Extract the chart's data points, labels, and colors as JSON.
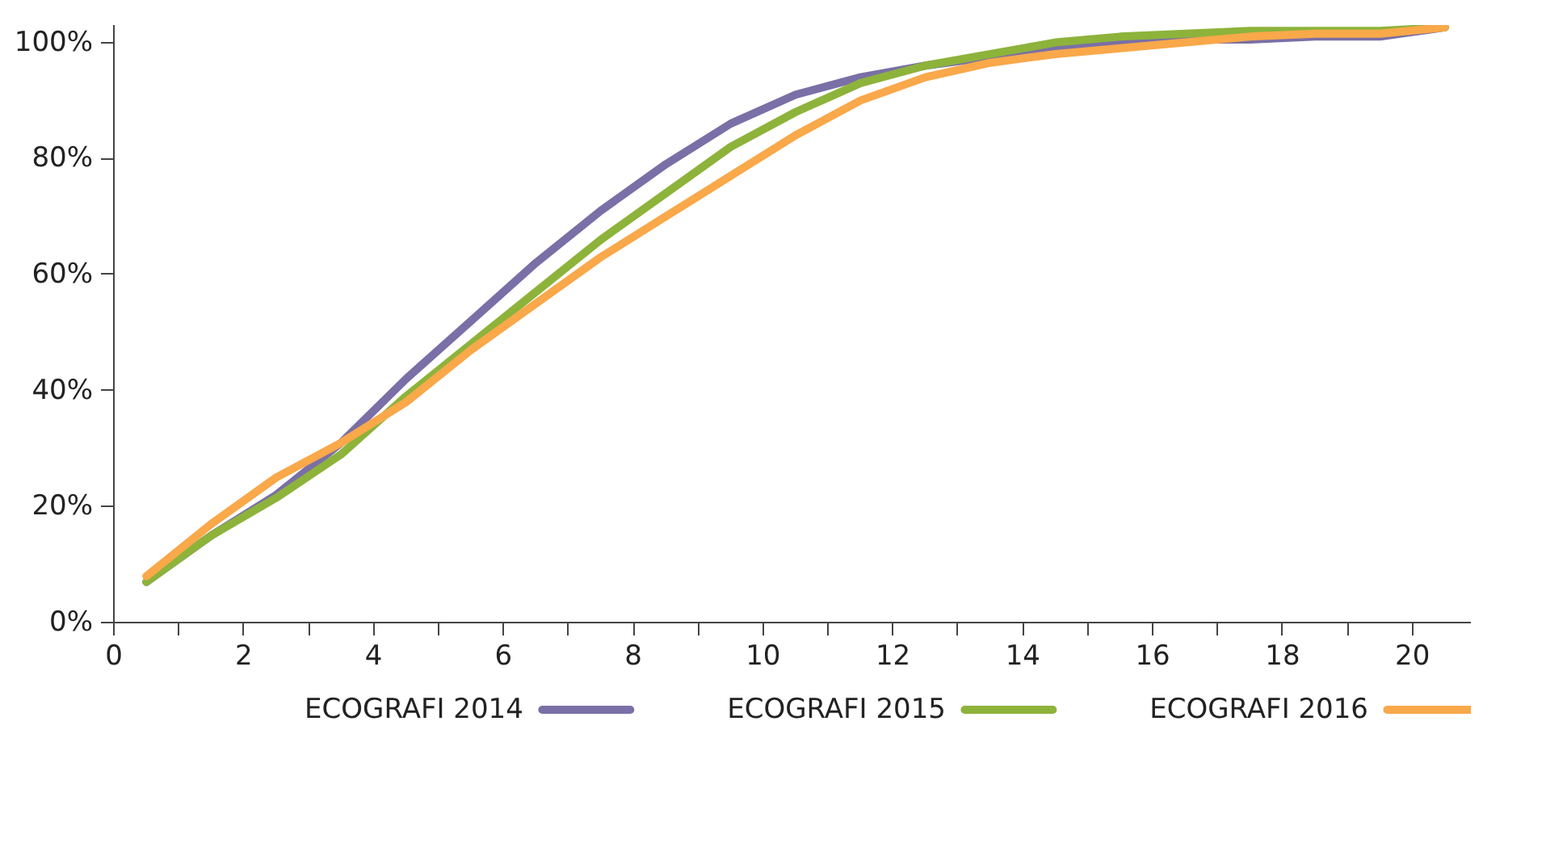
{
  "chart_data": {
    "type": "line",
    "x": [
      0.5,
      1.5,
      2.5,
      3.5,
      4.5,
      5.5,
      6.5,
      7.5,
      8.5,
      9.5,
      10.5,
      11.5,
      12.5,
      13.5,
      14.5,
      15.5,
      16.5,
      17.5,
      18.5,
      19.5,
      20.5
    ],
    "series": [
      {
        "name": "ECOGRAFI 2014",
        "color": "#7a6fa6",
        "values": [
          7,
          15,
          22,
          31,
          42,
          52,
          62,
          71,
          79,
          86,
          91,
          94,
          96,
          97.5,
          99,
          100,
          100.5,
          100.5,
          101,
          101,
          102.6
        ]
      },
      {
        "name": "ECOGRAFI 2015",
        "color": "#8db33b",
        "values": [
          7,
          15,
          21.5,
          29,
          39,
          48,
          57,
          66,
          74,
          82,
          88,
          93,
          96,
          98,
          100,
          101,
          101.5,
          102,
          102,
          102,
          102.6
        ]
      },
      {
        "name": "ECOGRAFI 2016",
        "color": "#f9a84a",
        "values": [
          8,
          17,
          25,
          31,
          38,
          47,
          55,
          63,
          70,
          77,
          84,
          90,
          94,
          96.5,
          98,
          99,
          100,
          101,
          101.5,
          101.5,
          102.6
        ]
      }
    ],
    "xlim": [
      0,
      20.9
    ],
    "ylim": [
      0,
      103
    ],
    "xticks": [
      0,
      2,
      4,
      6,
      8,
      10,
      12,
      14,
      16,
      18,
      20
    ],
    "yticks": [
      {
        "value": 0,
        "label": "0%"
      },
      {
        "value": 20,
        "label": "20%"
      },
      {
        "value": 40,
        "label": "40%"
      },
      {
        "value": 60,
        "label": "60%"
      },
      {
        "value": 80,
        "label": "80%"
      },
      {
        "value": 100,
        "label": "100%"
      }
    ],
    "grid": false,
    "legend": "bottom",
    "marker": "none",
    "line_style": "solid"
  }
}
